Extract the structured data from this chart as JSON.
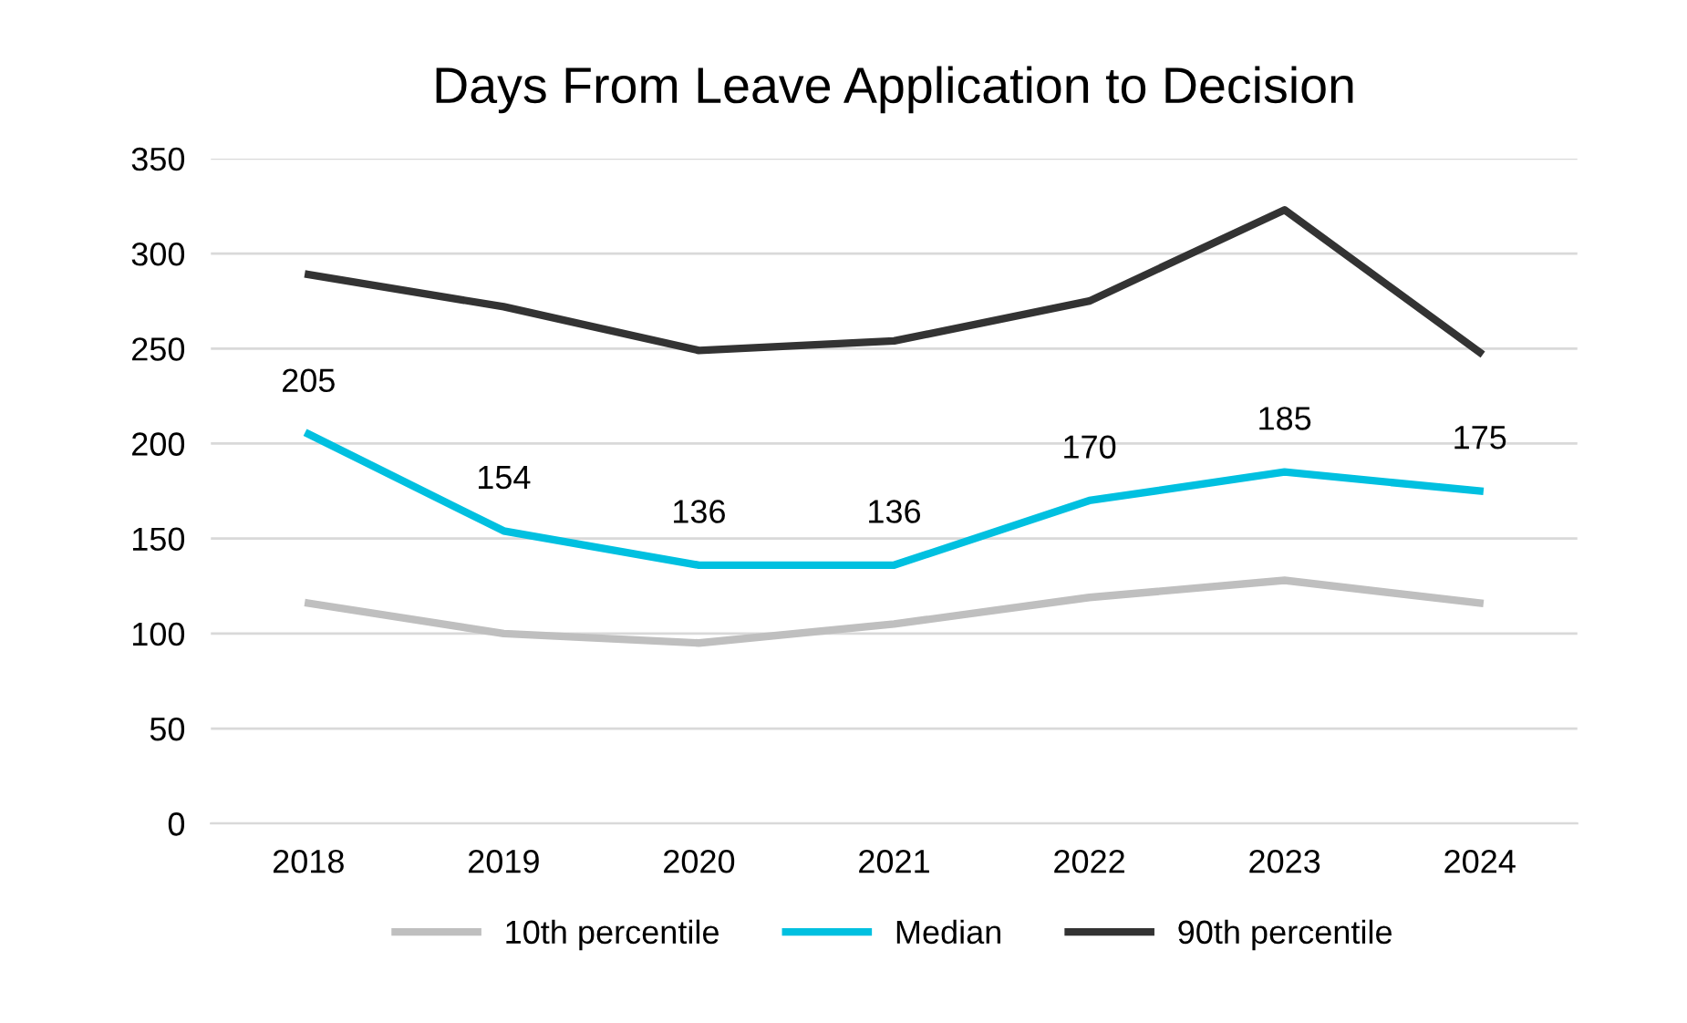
{
  "chart_data": {
    "type": "line",
    "title": "Days From Leave Application to Decision",
    "categories": [
      "2018",
      "2019",
      "2020",
      "2021",
      "2022",
      "2023",
      "2024"
    ],
    "series": [
      {
        "name": "10th percentile",
        "color": "#bfbfbf",
        "values": [
          116,
          100,
          95,
          105,
          119,
          128,
          116
        ]
      },
      {
        "name": "Median",
        "color": "#00c0e0",
        "values": [
          205,
          154,
          136,
          136,
          170,
          185,
          175
        ],
        "value_labels": [
          "205",
          "154",
          "136",
          "136",
          "170",
          "185",
          "175"
        ]
      },
      {
        "name": "90th percentile",
        "color": "#333333",
        "values": [
          289,
          272,
          249,
          254,
          275,
          323,
          248
        ]
      }
    ],
    "ylim": [
      0,
      350
    ],
    "yticks": [
      0,
      50,
      100,
      150,
      200,
      250,
      300,
      350
    ],
    "grid": "y",
    "legend": "bottom"
  }
}
